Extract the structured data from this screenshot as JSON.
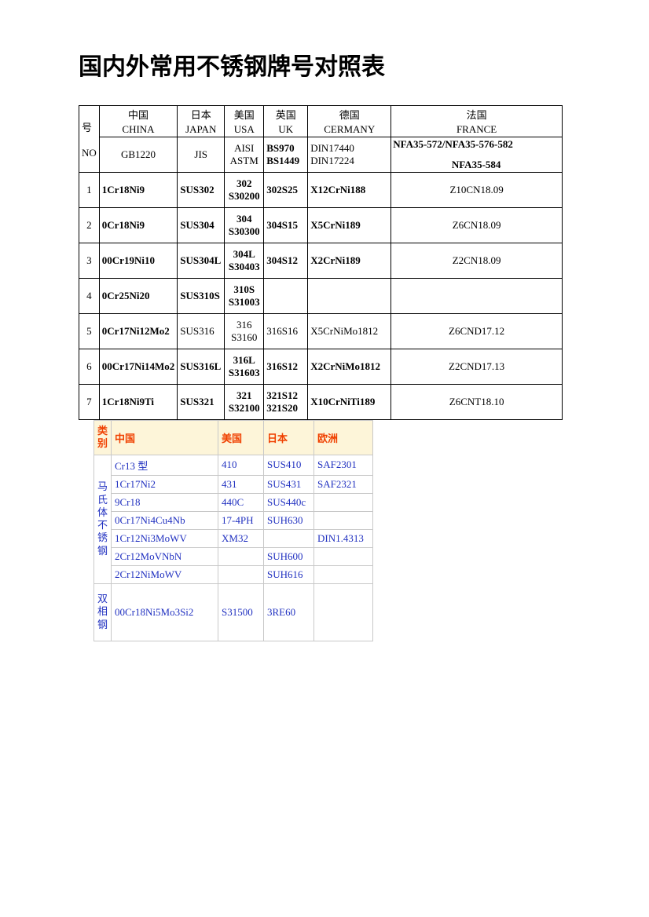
{
  "title": "国内外常用不锈钢牌号对照表",
  "main_table": {
    "corner": {
      "no_label": "号\n\nNO"
    },
    "headers": [
      {
        "cn": "中国",
        "en": "CHINA"
      },
      {
        "cn": "日本",
        "en": "JAPAN"
      },
      {
        "cn": "美国",
        "en": "USA"
      },
      {
        "cn": "英国",
        "en": "UK"
      },
      {
        "cn": "德国",
        "en": "CERMANY"
      },
      {
        "cn": "法国",
        "en": "FRANCE"
      }
    ],
    "standards": {
      "cn": "GB1220",
      "jp": "JIS",
      "us": "AISI\nASTM",
      "uk": "BS970\nBS1449",
      "de": "DIN17440\nDIN17224",
      "fr_line1": "NFA35-572/NFA35-576-582",
      "fr_line2": "NFA35-584"
    },
    "rows": [
      {
        "no": "1",
        "cn": "1Cr18Ni9",
        "jp": "SUS302",
        "us": "302\nS30200",
        "uk": "302S25",
        "de": "X12CrNi188",
        "fr": "Z10CN18.09"
      },
      {
        "no": "2",
        "cn": "0Cr18Ni9",
        "jp": "SUS304",
        "us": "304\nS30300",
        "uk": "304S15",
        "de": "X5CrNi189",
        "fr": "Z6CN18.09"
      },
      {
        "no": "3",
        "cn": "00Cr19Ni10",
        "jp": "SUS304L",
        "us": "304L\nS30403",
        "uk": "304S12",
        "de": "X2CrNi189",
        "fr": "Z2CN18.09"
      },
      {
        "no": "4",
        "cn": "0Cr25Ni20",
        "jp": "SUS310S",
        "us": "310S\nS31003",
        "uk": "",
        "de": "",
        "fr": ""
      },
      {
        "no": "5",
        "cn": "0Cr17Ni12Mo2",
        "jp": "SUS316",
        "jp_nob": true,
        "us": "316\nS3160",
        "us_nob": true,
        "uk": "316S16",
        "uk_nob": true,
        "de": "X5CrNiMo1812",
        "de_nob": true,
        "fr": "Z6CND17.12"
      },
      {
        "no": "6",
        "cn": "00Cr17Ni14Mo2",
        "jp": "SUS316L",
        "us": "316L\nS31603",
        "uk": "316S12",
        "de": "X2CrNiMo1812",
        "fr": "Z2CND17.13"
      },
      {
        "no": "7",
        "cn": "1Cr18Ni9Ti",
        "jp": "SUS321",
        "us": "321\nS32100",
        "uk": "321S12\n321S20",
        "de": "X10CrNiTi189",
        "fr": "Z6CNT18.10"
      }
    ]
  },
  "sub_table": {
    "headers": {
      "cat": "类别",
      "cn": "中国",
      "us": "美国",
      "jp": "日本",
      "eu": "欧洲"
    },
    "cat1": "马氏体不锈钢",
    "cat1_rows": [
      {
        "cn": "Cr13 型",
        "us": "410",
        "jp": "SUS410",
        "eu": "SAF2301"
      },
      {
        "cn": "1Cr17Ni2",
        "us": "431",
        "jp": "SUS431",
        "eu": "SAF2321"
      },
      {
        "cn": "9Cr18",
        "us": "440C",
        "jp": "SUS440c",
        "eu": ""
      },
      {
        "cn": "0Cr17Ni4Cu4Nb",
        "us": "17-4PH",
        "jp": "SUH630",
        "eu": ""
      },
      {
        "cn": "1Cr12Ni3MoWV",
        "us": "XM32",
        "jp": "",
        "eu": "DIN1.4313"
      },
      {
        "cn": "2Cr12MoVNbN",
        "us": "",
        "jp": "SUH600",
        "eu": ""
      },
      {
        "cn": "2Cr12NiMoWV",
        "us": "",
        "jp": "SUH616",
        "eu": ""
      }
    ],
    "cat2": "双相钢",
    "cat2_rows": [
      {
        "cn": "00Cr18Ni5Mo3Si2",
        "us": "S31500",
        "jp": "3RE60",
        "eu": ""
      }
    ]
  }
}
